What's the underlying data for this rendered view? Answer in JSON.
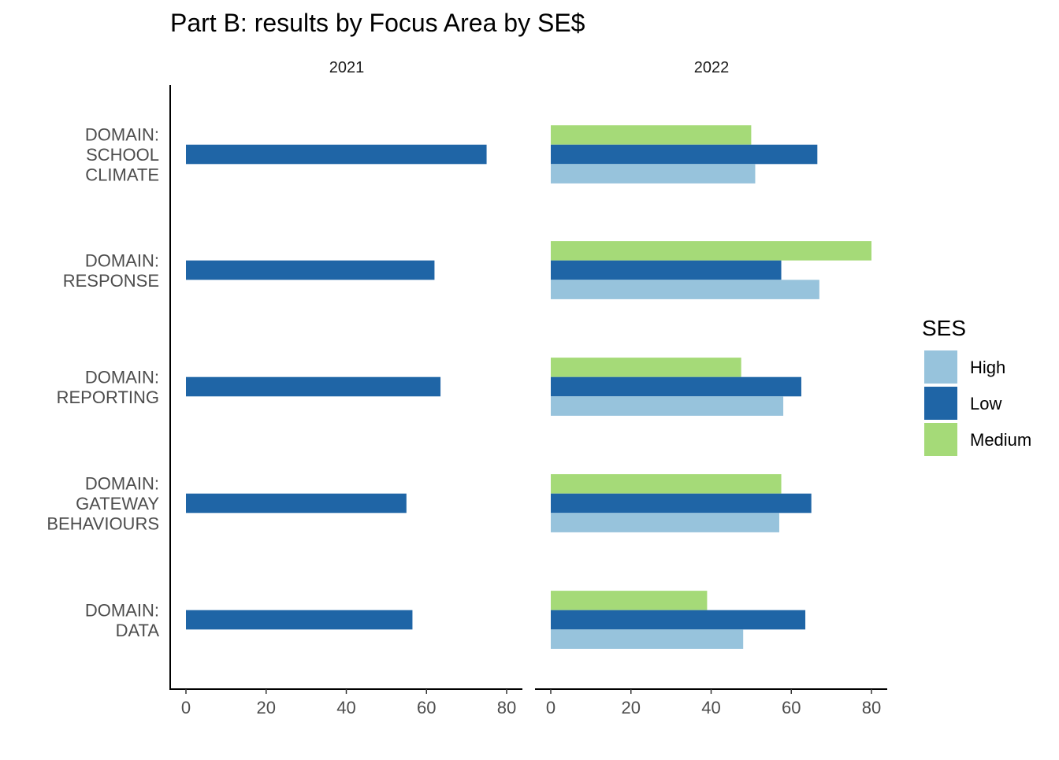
{
  "chart_data": {
    "type": "bar",
    "orientation": "horizontal",
    "title": "Part B: results by Focus Area by SE$",
    "xlabel": "",
    "ylabel": "",
    "xlim": [
      0,
      80
    ],
    "x_ticks": [
      "0",
      "20",
      "40",
      "60",
      "80"
    ],
    "grid": false,
    "legend": {
      "title": "SES",
      "position": "right",
      "entries": [
        {
          "name": "High",
          "color": "#97c3dc"
        },
        {
          "name": "Low",
          "color": "#1f65a6"
        },
        {
          "name": "Medium",
          "color": "#a5da78"
        }
      ]
    },
    "categories": [
      [
        "DOMAIN:",
        "SCHOOL",
        "CLIMATE"
      ],
      [
        "DOMAIN:",
        "RESPONSE"
      ],
      [
        "DOMAIN:",
        "REPORTING"
      ],
      [
        "DOMAIN:",
        "GATEWAY",
        "BEHAVIOURS"
      ],
      [
        "DOMAIN:",
        "DATA"
      ]
    ],
    "facets": [
      {
        "label": "2021",
        "series": [
          {
            "name": "Low",
            "values": [
              75,
              62,
              63.5,
              55,
              56.5
            ]
          }
        ]
      },
      {
        "label": "2022",
        "series": [
          {
            "name": "Medium",
            "values": [
              50,
              80,
              47.5,
              57.5,
              39
            ]
          },
          {
            "name": "Low",
            "values": [
              66.5,
              57.5,
              62.5,
              65,
              63.5
            ]
          },
          {
            "name": "High",
            "values": [
              51,
              67,
              58,
              57,
              48
            ]
          }
        ]
      }
    ]
  }
}
